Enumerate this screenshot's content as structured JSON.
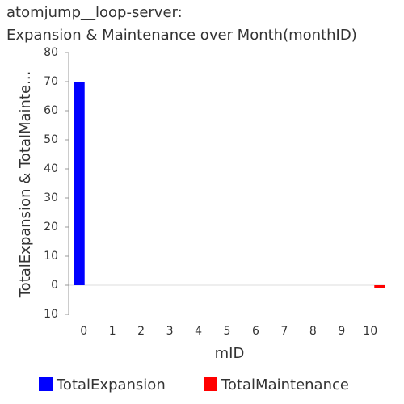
{
  "chart_data": {
    "type": "bar",
    "title": [
      "atomjump__loop-server:",
      "Expansion & Maintenance over Month(monthID)"
    ],
    "x_label": "mID",
    "y_label": "TotalExpansion & TotalMainte...",
    "categories": [
      "0",
      "1",
      "2",
      "3",
      "4",
      "5",
      "6",
      "7",
      "8",
      "9",
      "10"
    ],
    "series": [
      {
        "name": "TotalExpansion",
        "color": "#0000ff",
        "values": [
          70,
          null,
          null,
          null,
          null,
          null,
          null,
          null,
          null,
          null,
          null
        ]
      },
      {
        "name": "TotalMaintenance",
        "color": "#ff0000",
        "values": [
          null,
          null,
          null,
          null,
          null,
          null,
          null,
          null,
          null,
          null,
          -1
        ]
      }
    ],
    "ylim": [
      -10,
      80
    ],
    "yticks": [
      {
        "value": -10,
        "label": "10"
      },
      0,
      10,
      20,
      30,
      40,
      50,
      60,
      70,
      80
    ]
  }
}
